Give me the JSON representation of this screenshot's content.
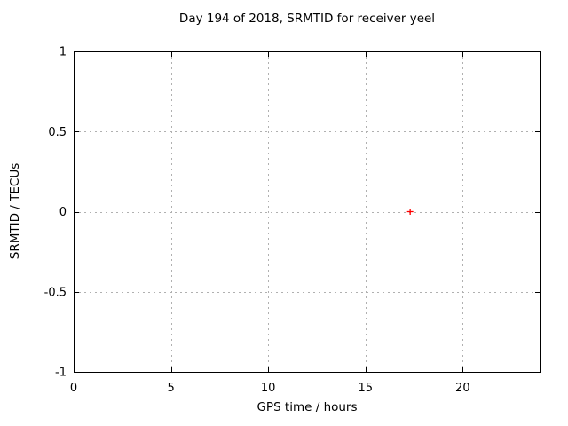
{
  "chart_data": {
    "type": "scatter",
    "title": "Day 194 of 2018, SRMTID for receiver yeel",
    "xlabel": "GPS time / hours",
    "ylabel": "SRMTID / TECUs",
    "xlim": [
      0,
      24
    ],
    "ylim": [
      -1,
      1
    ],
    "xticks": [
      0,
      5,
      10,
      15,
      20
    ],
    "yticks": [
      -1,
      -0.5,
      0,
      0.5,
      1
    ],
    "grid": true,
    "legend": "none",
    "colors": {
      "marker": "#ff0000",
      "grid": "#b0b0b0",
      "border": "#000000",
      "text": "#000000",
      "background": "#ffffff"
    },
    "series": [
      {
        "name": "SRMTID",
        "marker": "plus",
        "points": [
          {
            "x": 17.3,
            "y": 0
          }
        ]
      }
    ]
  }
}
